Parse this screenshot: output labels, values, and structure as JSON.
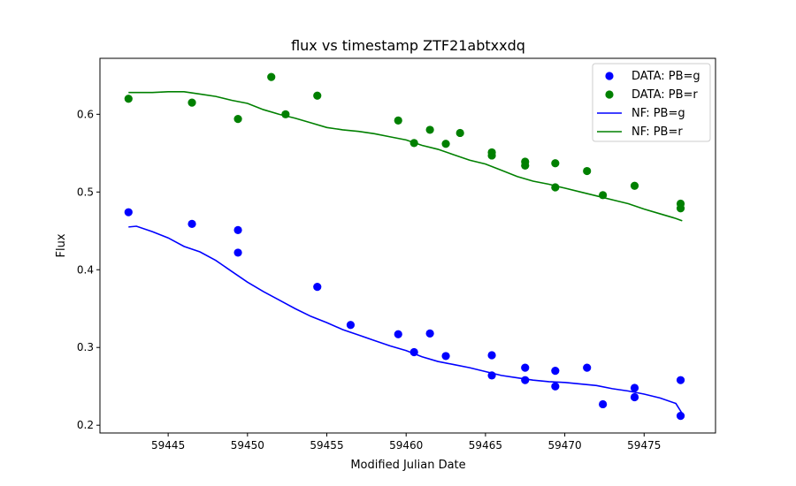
{
  "chart_data": {
    "type": "scatter",
    "title": "flux vs timestamp ZTF21abtxxdq",
    "xlabel": "Modified Julian Date",
    "ylabel": "Flux",
    "xlim": [
      59440.7,
      59479.5
    ],
    "ylim": [
      0.19,
      0.672
    ],
    "xticks": [
      59445,
      59450,
      59455,
      59460,
      59465,
      59470,
      59475
    ],
    "yticks": [
      0.2,
      0.3,
      0.4,
      0.5,
      0.6
    ],
    "grid": false,
    "legend_position": "top-right",
    "colors": {
      "g": "#0000ff",
      "r": "#008000"
    },
    "series": [
      {
        "name": "DATA: PB=g",
        "kind": "scatter",
        "color": "#0000ff",
        "points": [
          [
            59442.5,
            0.474
          ],
          [
            59446.5,
            0.459
          ],
          [
            59449.4,
            0.451
          ],
          [
            59449.4,
            0.422
          ],
          [
            59454.4,
            0.378
          ],
          [
            59456.5,
            0.329
          ],
          [
            59459.5,
            0.317
          ],
          [
            59460.5,
            0.294
          ],
          [
            59461.5,
            0.318
          ],
          [
            59462.5,
            0.289
          ],
          [
            59465.4,
            0.29
          ],
          [
            59465.4,
            0.264
          ],
          [
            59467.5,
            0.274
          ],
          [
            59467.5,
            0.258
          ],
          [
            59469.4,
            0.27
          ],
          [
            59469.4,
            0.25
          ],
          [
            59471.4,
            0.274
          ],
          [
            59472.4,
            0.227
          ],
          [
            59474.4,
            0.248
          ],
          [
            59474.4,
            0.236
          ],
          [
            59477.3,
            0.258
          ],
          [
            59477.3,
            0.212
          ]
        ]
      },
      {
        "name": "DATA: PB=r",
        "kind": "scatter",
        "color": "#008000",
        "points": [
          [
            59442.5,
            0.62
          ],
          [
            59446.5,
            0.615
          ],
          [
            59449.4,
            0.594
          ],
          [
            59451.5,
            0.648
          ],
          [
            59452.4,
            0.6
          ],
          [
            59454.4,
            0.624
          ],
          [
            59459.5,
            0.592
          ],
          [
            59460.5,
            0.563
          ],
          [
            59461.5,
            0.58
          ],
          [
            59462.5,
            0.562
          ],
          [
            59463.4,
            0.576
          ],
          [
            59465.4,
            0.551
          ],
          [
            59465.4,
            0.547
          ],
          [
            59467.5,
            0.539
          ],
          [
            59467.5,
            0.534
          ],
          [
            59469.4,
            0.537
          ],
          [
            59469.4,
            0.506
          ],
          [
            59471.4,
            0.527
          ],
          [
            59472.4,
            0.496
          ],
          [
            59474.4,
            0.508
          ],
          [
            59477.3,
            0.485
          ],
          [
            59477.3,
            0.479
          ]
        ]
      },
      {
        "name": "NF: PB=g",
        "kind": "line",
        "color": "#0000ff",
        "points": [
          [
            59442.5,
            0.455
          ],
          [
            59443.0,
            0.456
          ],
          [
            59444.0,
            0.449
          ],
          [
            59445.0,
            0.441
          ],
          [
            59446.0,
            0.43
          ],
          [
            59447.0,
            0.423
          ],
          [
            59448.0,
            0.412
          ],
          [
            59449.0,
            0.398
          ],
          [
            59450.0,
            0.384
          ],
          [
            59451.0,
            0.372
          ],
          [
            59452.0,
            0.361
          ],
          [
            59453.0,
            0.35
          ],
          [
            59454.0,
            0.34
          ],
          [
            59455.0,
            0.332
          ],
          [
            59456.0,
            0.323
          ],
          [
            59457.0,
            0.316
          ],
          [
            59458.0,
            0.309
          ],
          [
            59459.0,
            0.302
          ],
          [
            59460.0,
            0.296
          ],
          [
            59461.0,
            0.288
          ],
          [
            59462.0,
            0.282
          ],
          [
            59463.0,
            0.278
          ],
          [
            59464.0,
            0.274
          ],
          [
            59465.0,
            0.269
          ],
          [
            59466.0,
            0.264
          ],
          [
            59467.0,
            0.261
          ],
          [
            59468.0,
            0.258
          ],
          [
            59469.0,
            0.256
          ],
          [
            59470.0,
            0.255
          ],
          [
            59471.0,
            0.253
          ],
          [
            59472.0,
            0.251
          ],
          [
            59473.0,
            0.247
          ],
          [
            59474.0,
            0.244
          ],
          [
            59475.0,
            0.24
          ],
          [
            59476.0,
            0.235
          ],
          [
            59477.0,
            0.228
          ],
          [
            59477.4,
            0.215
          ]
        ]
      },
      {
        "name": "NF: PB=r",
        "kind": "line",
        "color": "#008000",
        "points": [
          [
            59442.5,
            0.628
          ],
          [
            59443.0,
            0.628
          ],
          [
            59444.0,
            0.628
          ],
          [
            59445.0,
            0.629
          ],
          [
            59446.0,
            0.629
          ],
          [
            59447.0,
            0.626
          ],
          [
            59448.0,
            0.623
          ],
          [
            59449.0,
            0.618
          ],
          [
            59450.0,
            0.614
          ],
          [
            59451.0,
            0.606
          ],
          [
            59452.0,
            0.6
          ],
          [
            59453.0,
            0.595
          ],
          [
            59454.0,
            0.589
          ],
          [
            59455.0,
            0.583
          ],
          [
            59456.0,
            0.58
          ],
          [
            59457.0,
            0.578
          ],
          [
            59458.0,
            0.575
          ],
          [
            59459.0,
            0.571
          ],
          [
            59460.0,
            0.567
          ],
          [
            59461.0,
            0.56
          ],
          [
            59462.0,
            0.555
          ],
          [
            59463.0,
            0.548
          ],
          [
            59464.0,
            0.541
          ],
          [
            59465.0,
            0.536
          ],
          [
            59466.0,
            0.528
          ],
          [
            59467.0,
            0.52
          ],
          [
            59468.0,
            0.514
          ],
          [
            59469.0,
            0.51
          ],
          [
            59470.0,
            0.505
          ],
          [
            59471.0,
            0.5
          ],
          [
            59472.0,
            0.495
          ],
          [
            59473.0,
            0.49
          ],
          [
            59474.0,
            0.485
          ],
          [
            59475.0,
            0.478
          ],
          [
            59476.0,
            0.472
          ],
          [
            59477.0,
            0.466
          ],
          [
            59477.4,
            0.463
          ]
        ]
      }
    ]
  }
}
